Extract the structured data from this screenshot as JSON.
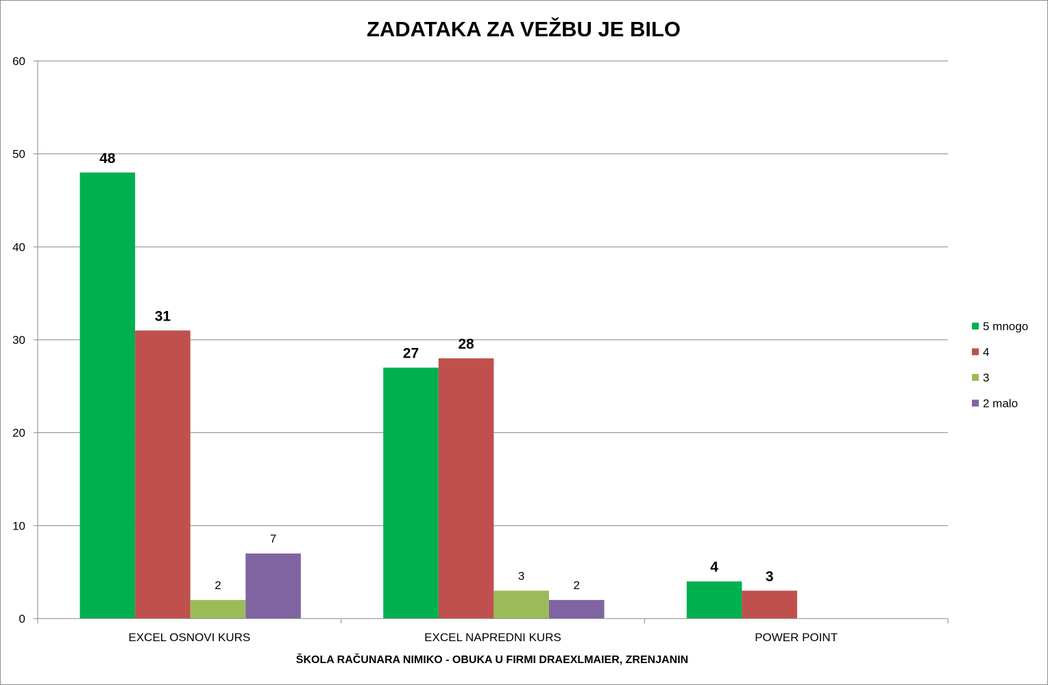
{
  "chart_data": {
    "type": "bar",
    "title": "ZADATAKA ZA VEŽBU JE BILO",
    "xlabel": "ŠKOLA RAČUNARA NIMIKO - OBUKA U FIRMI DRAEXLMAIER, ZRENJANIN",
    "ylabel": "",
    "ylim": [
      0,
      60
    ],
    "yticks": [
      0,
      10,
      20,
      30,
      40,
      50,
      60
    ],
    "grid": true,
    "legend_position": "right",
    "categories": [
      "EXCEL OSNOVI KURS",
      "EXCEL NAPREDNI KURS",
      "POWER POINT"
    ],
    "series": [
      {
        "name": "5 mnogo",
        "color": "#00B050",
        "values": [
          48,
          27,
          4
        ],
        "labels": [
          "48",
          "27",
          "4"
        ],
        "label_style": "bold"
      },
      {
        "name": "4",
        "color": "#C0504D",
        "values": [
          31,
          28,
          3
        ],
        "labels": [
          "31",
          "28",
          "3"
        ],
        "label_style": "bold"
      },
      {
        "name": "3",
        "color": "#9BBB59",
        "values": [
          2,
          3,
          null
        ],
        "labels": [
          "2",
          "3",
          ""
        ],
        "label_style": "plain"
      },
      {
        "name": "2 malo",
        "color": "#8064A2",
        "values": [
          7,
          2,
          null
        ],
        "labels": [
          "7",
          "2",
          ""
        ],
        "label_style": "plain"
      }
    ]
  }
}
